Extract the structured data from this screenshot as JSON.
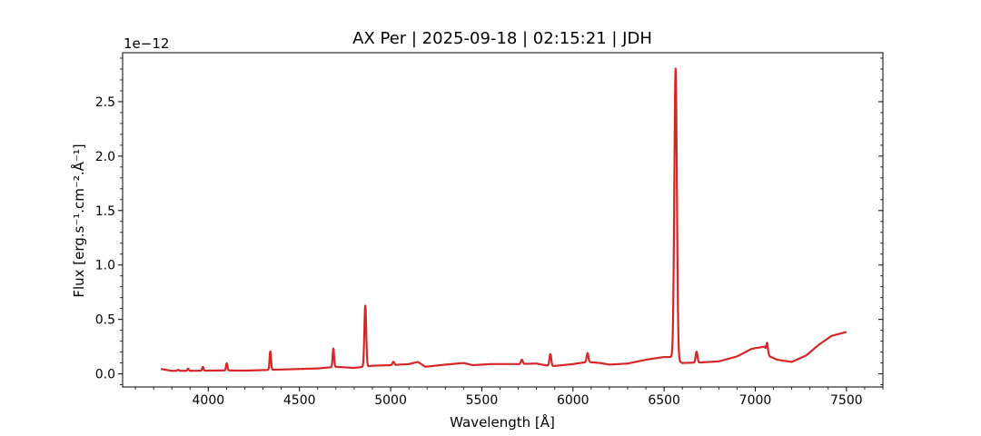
{
  "chart_data": {
    "type": "line",
    "title": "AX Per | 2025-09-18 | 02:15:21 | JDH",
    "xlabel": "Wavelength [Å]",
    "ylabel": "Flux [erg.s⁻¹.cm⁻².Å⁻¹]",
    "y_offset_label": "1e−12",
    "xlim": [
      3530,
      7700
    ],
    "ylim": [
      -1.2e-13,
      2.95e-12
    ],
    "x_ticks": [
      4000,
      4500,
      5000,
      5500,
      6000,
      6500,
      7000,
      7500
    ],
    "x_tick_labels": [
      "4000",
      "4500",
      "5000",
      "5500",
      "6000",
      "6500",
      "7000",
      "7500"
    ],
    "y_ticks": [
      0.0,
      5e-13,
      1e-12,
      1.5e-12,
      2e-12,
      2.5e-12
    ],
    "y_tick_labels": [
      "0.0",
      "0.5",
      "1.0",
      "1.5",
      "2.0",
      "2.5"
    ],
    "grid": false,
    "series": [
      {
        "color": "#d62728",
        "continuum": [
          [
            3740,
            4.5e-14
          ],
          [
            3800,
            2.8e-14
          ],
          [
            3900,
            2.8e-14
          ],
          [
            4000,
            3e-14
          ],
          [
            4100,
            3.2e-14
          ],
          [
            4200,
            3e-14
          ],
          [
            4300,
            3.5e-14
          ],
          [
            4400,
            4e-14
          ],
          [
            4500,
            4.5e-14
          ],
          [
            4600,
            5e-14
          ],
          [
            4700,
            6.5e-14
          ],
          [
            4800,
            5.5e-14
          ],
          [
            4900,
            7.5e-14
          ],
          [
            5000,
            8e-14
          ],
          [
            5100,
            9e-14
          ],
          [
            5150,
            1.1e-13
          ],
          [
            5190,
            6.5e-14
          ],
          [
            5300,
            8.5e-14
          ],
          [
            5400,
            1e-13
          ],
          [
            5450,
            8e-14
          ],
          [
            5550,
            9e-14
          ],
          [
            5700,
            9e-14
          ],
          [
            5800,
            9.5e-14
          ],
          [
            5880,
            7e-14
          ],
          [
            6000,
            9e-14
          ],
          [
            6080,
            1.1e-13
          ],
          [
            6150,
            1e-13
          ],
          [
            6200,
            8.5e-14
          ],
          [
            6300,
            9.5e-14
          ],
          [
            6400,
            1.3e-13
          ],
          [
            6500,
            1.55e-13
          ],
          [
            6540,
            1.55e-13
          ],
          [
            6600,
            1e-13
          ],
          [
            6700,
            1.05e-13
          ],
          [
            6800,
            1.15e-13
          ],
          [
            6900,
            1.6e-13
          ],
          [
            6980,
            2.3e-13
          ],
          [
            7050,
            2.5e-13
          ],
          [
            7080,
            1.6e-13
          ],
          [
            7120,
            1.3e-13
          ],
          [
            7200,
            1.1e-13
          ],
          [
            7280,
            1.7e-13
          ],
          [
            7350,
            2.7e-13
          ],
          [
            7420,
            3.5e-13
          ],
          [
            7500,
            3.85e-13
          ]
        ],
        "emission_lines": [
          [
            3835,
            1e-14,
            4
          ],
          [
            3889,
            2e-14,
            4
          ],
          [
            3970,
            3.5e-14,
            4
          ],
          [
            4101,
            6.5e-14,
            4
          ],
          [
            4340,
            1.7e-13,
            4
          ],
          [
            4686,
            1.7e-13,
            4
          ],
          [
            4861,
            5.6e-13,
            5
          ],
          [
            5015,
            3e-14,
            5
          ],
          [
            5876,
            1.1e-13,
            5
          ],
          [
            5720,
            4e-14,
            5
          ],
          [
            6080,
            8e-14,
            5
          ],
          [
            6563,
            2.67e-12,
            7
          ],
          [
            6678,
            1e-13,
            5
          ],
          [
            7065,
            8e-14,
            4
          ]
        ]
      }
    ]
  }
}
